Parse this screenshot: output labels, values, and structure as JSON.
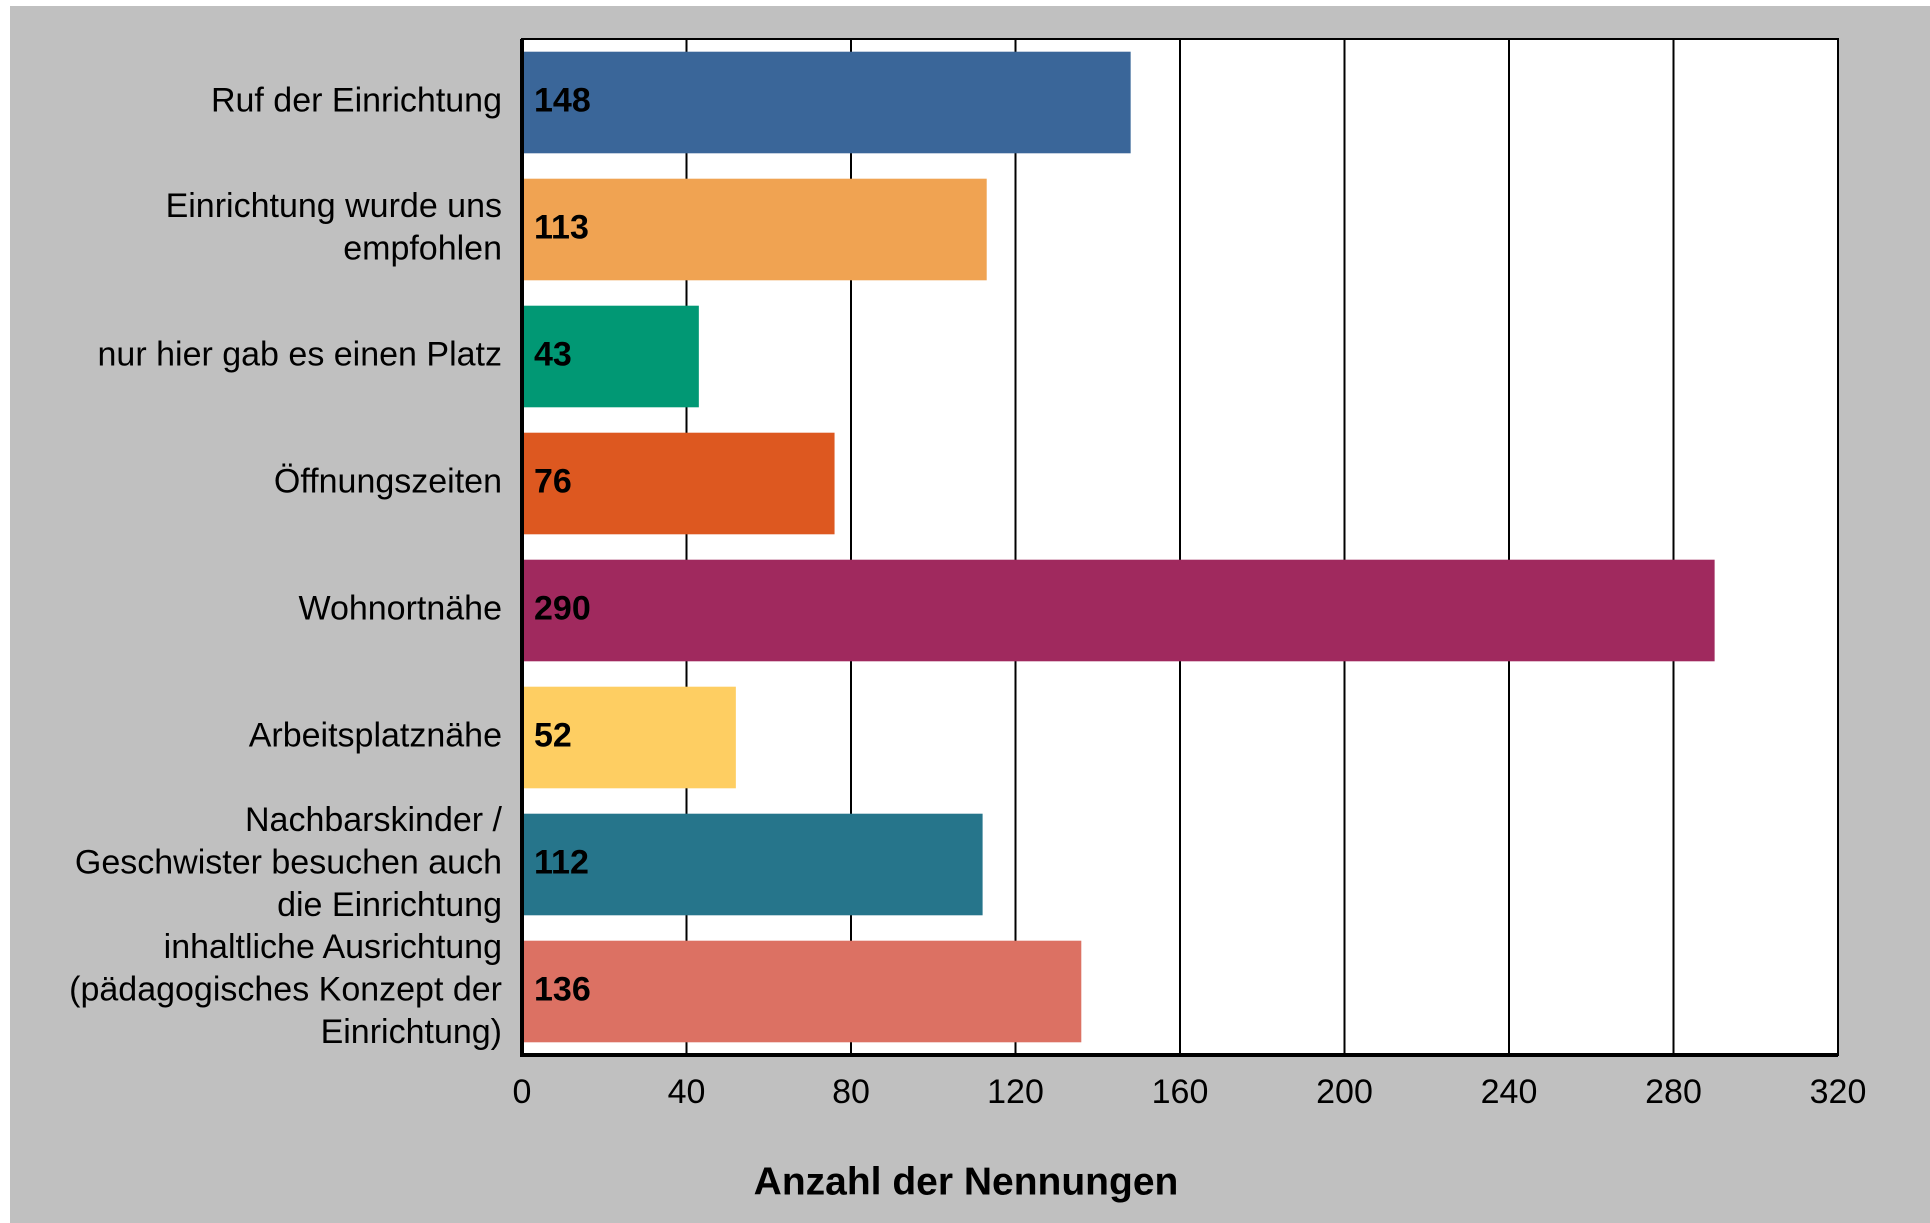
{
  "chart_data": {
    "type": "bar",
    "orientation": "horizontal",
    "x_label": "Anzahl der Nennungen",
    "categories": [
      [
        "Ruf der Einrichtung"
      ],
      [
        "Einrichtung wurde uns",
        "empfohlen"
      ],
      [
        "nur hier gab es einen Platz"
      ],
      [
        "Öffnungszeiten"
      ],
      [
        "Wohnortnähe"
      ],
      [
        "Arbeitsplatznähe"
      ],
      [
        "Nachbarskinder /",
        "Geschwister besuchen auch",
        "die Einrichtung"
      ],
      [
        "inhaltliche Ausrichtung",
        "(pädagogisches Konzept der",
        "Einrichtung)"
      ]
    ],
    "values": [
      148,
      113,
      43,
      76,
      290,
      52,
      112,
      136
    ],
    "colors": [
      "#3a6699",
      "#f0a352",
      "#019874",
      "#dd5820",
      "#a0295e",
      "#fece62",
      "#26758b",
      "#dc7163"
    ],
    "xlim": [
      0,
      320
    ],
    "xticks": [
      0,
      40,
      80,
      120,
      160,
      200,
      240,
      280,
      320
    ],
    "grid": true
  }
}
